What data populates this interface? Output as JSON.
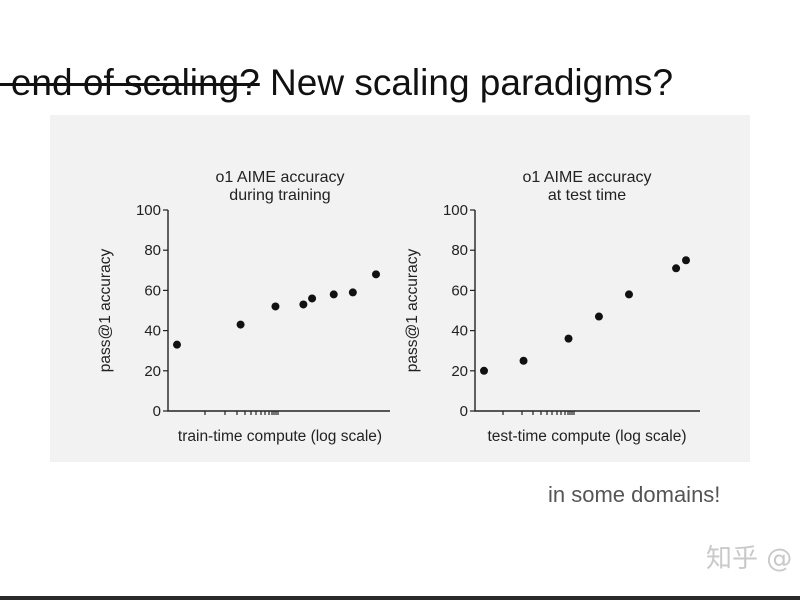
{
  "slide": {
    "title_struck": "e end of scaling?",
    "title_rest": " New scaling paradigms?",
    "note": "in some domains!",
    "watermark": "知乎 @"
  },
  "chart_data": [
    {
      "type": "scatter",
      "title": [
        "o1 AIME accuracy",
        "during training"
      ],
      "xlabel": "train-time compute (log scale)",
      "ylabel": "pass@1 accuracy",
      "x_scale": "log",
      "ylim": [
        0,
        100
      ],
      "yticks": [
        0,
        20,
        40,
        60,
        80,
        100
      ],
      "grid": false,
      "points": [
        {
          "x": 1.0,
          "y": 33
        },
        {
          "x": 2.9,
          "y": 43
        },
        {
          "x": 5.2,
          "y": 52
        },
        {
          "x": 8.3,
          "y": 53
        },
        {
          "x": 9.6,
          "y": 56
        },
        {
          "x": 13.8,
          "y": 58
        },
        {
          "x": 19.0,
          "y": 59
        },
        {
          "x": 28.0,
          "y": 68
        }
      ]
    },
    {
      "type": "scatter",
      "title": [
        "o1 AIME accuracy",
        "at test time"
      ],
      "xlabel": "test-time compute (log scale)",
      "ylabel": "pass@1 accuracy",
      "x_scale": "log",
      "ylim": [
        0,
        100
      ],
      "yticks": [
        0,
        20,
        40,
        60,
        80,
        100
      ],
      "grid": false,
      "points": [
        {
          "x": 1.0,
          "y": 20
        },
        {
          "x": 2.0,
          "y": 25
        },
        {
          "x": 4.4,
          "y": 36
        },
        {
          "x": 7.5,
          "y": 47
        },
        {
          "x": 12.7,
          "y": 58
        },
        {
          "x": 29.0,
          "y": 71
        },
        {
          "x": 34.5,
          "y": 75
        }
      ]
    }
  ]
}
